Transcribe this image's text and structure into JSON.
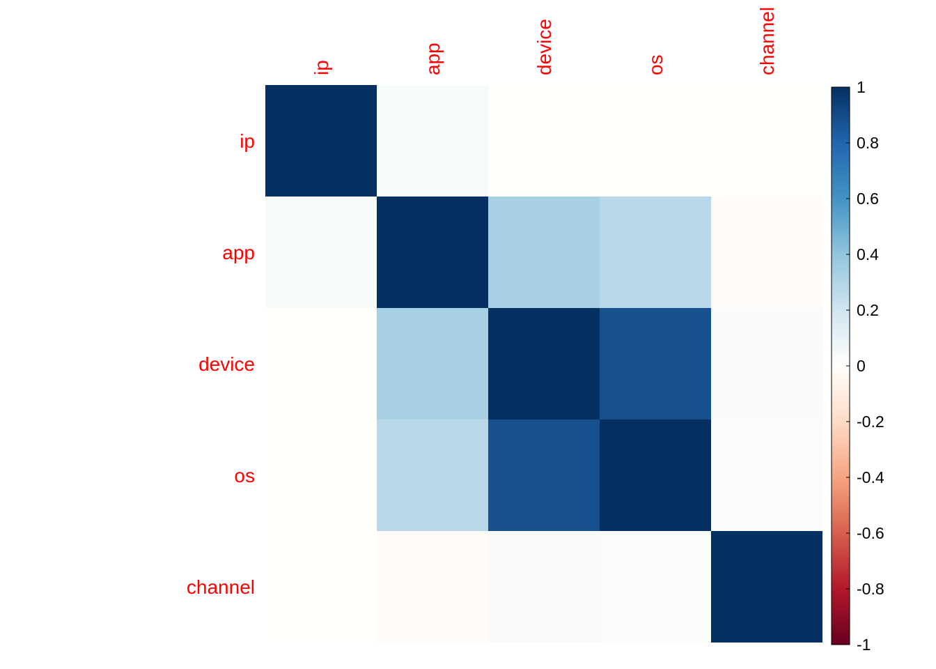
{
  "chart_data": {
    "type": "heatmap",
    "title": "",
    "rows": [
      "ip",
      "app",
      "device",
      "os",
      "channel"
    ],
    "columns": [
      "ip",
      "app",
      "device",
      "os",
      "channel"
    ],
    "values": [
      [
        1.0,
        0.04,
        0.0,
        0.0,
        0.0
      ],
      [
        0.04,
        1.0,
        0.33,
        0.28,
        -0.02
      ],
      [
        0.0,
        0.33,
        1.0,
        0.88,
        0.03
      ],
      [
        0.0,
        0.28,
        0.88,
        1.0,
        0.02
      ],
      [
        0.0,
        -0.02,
        0.03,
        0.02,
        1.0
      ]
    ],
    "colorbar": {
      "min": -1,
      "max": 1,
      "tick_values": [
        1,
        0.8,
        0.6,
        0.4,
        0.2,
        0,
        -0.2,
        -0.4,
        -0.6,
        -0.8,
        -1
      ],
      "tick_labels": [
        "1",
        "0.8",
        "0.6",
        "0.4",
        "0.2",
        "0",
        "-0.2",
        "-0.4",
        "-0.6",
        "-0.8",
        "-1"
      ],
      "placement": "right"
    },
    "colors": {
      "label_color": "#ff0000",
      "scale": [
        [
          -1.0,
          "#67001f"
        ],
        [
          -0.8,
          "#b2182b"
        ],
        [
          -0.6,
          "#d6604d"
        ],
        [
          -0.4,
          "#f4a582"
        ],
        [
          -0.2,
          "#fddbc7"
        ],
        [
          0.0,
          "#fffffb"
        ],
        [
          0.2,
          "#d1e5f0"
        ],
        [
          0.4,
          "#92c5de"
        ],
        [
          0.6,
          "#4393c3"
        ],
        [
          0.8,
          "#2166ac"
        ],
        [
          1.0,
          "#053061"
        ]
      ]
    }
  }
}
